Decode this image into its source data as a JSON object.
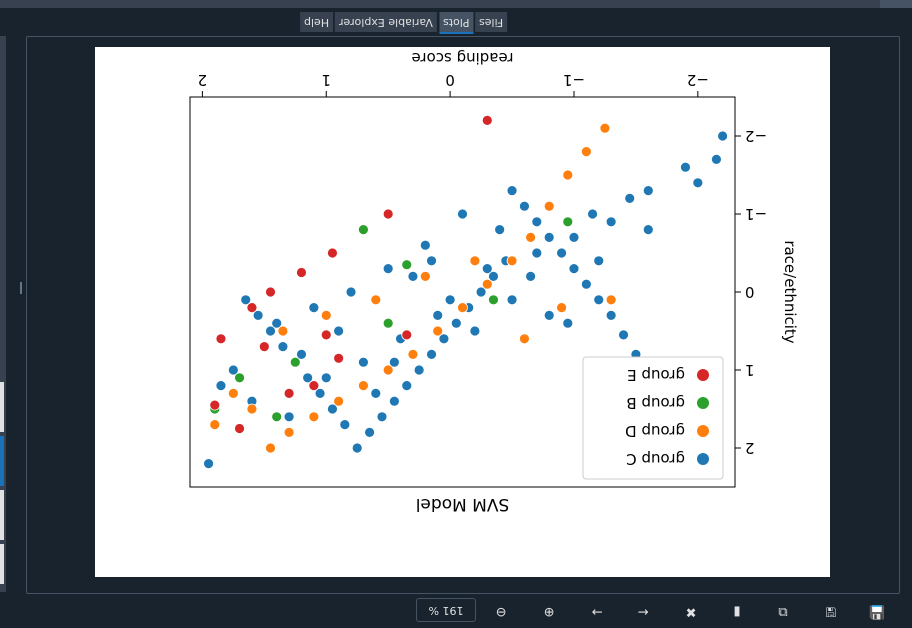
{
  "tabs": [
    {
      "label": "Help"
    },
    {
      "label": "Variable Explorer"
    },
    {
      "label": "Plots",
      "active": true
    },
    {
      "label": "Files"
    }
  ],
  "toolbar": {
    "zoom": "191 %",
    "icons": [
      "save-icon",
      "save-all-icon",
      "copy-icon",
      "clear-icon",
      "remove-icon",
      "next-icon",
      "previous-icon",
      "zoom-in-icon",
      "zoom-out-icon"
    ]
  },
  "chart_data": {
    "type": "scatter",
    "title": "SVM Model",
    "xlabel": "reading score",
    "ylabel": "race/ethnicity",
    "orientation": "rotated 180 degrees",
    "xlim": [
      -2.3,
      2.1
    ],
    "ylim": [
      -2.5,
      2.5
    ],
    "xticks": [
      "−2",
      "−1",
      "0",
      "1",
      "2"
    ],
    "yticks": [
      "−2",
      "−1",
      "0",
      "1",
      "2"
    ],
    "grid": false,
    "legend_position": "lower-right of plot (upper-left when rotated)",
    "colors": {
      "group C": "#1f77b4",
      "group D": "#ff7f0e",
      "group B": "#2ca02c",
      "group E": "#d62728"
    },
    "series": [
      {
        "name": "group C",
        "points": [
          [
            -2.1,
            2.1
          ],
          [
            -2.05,
            1.85
          ],
          [
            -1.95,
            1.6
          ],
          [
            -1.8,
            1.4
          ],
          [
            -1.7,
            1.2
          ],
          [
            -1.6,
            1.0
          ],
          [
            -1.5,
            0.8
          ],
          [
            -1.4,
            0.55
          ],
          [
            -1.3,
            0.3
          ],
          [
            -1.2,
            0.1
          ],
          [
            -1.1,
            -0.1
          ],
          [
            -1.0,
            -0.3
          ],
          [
            -0.9,
            -0.5
          ],
          [
            -0.8,
            -0.7
          ],
          [
            -0.7,
            -0.9
          ],
          [
            -0.6,
            -1.1
          ],
          [
            -0.5,
            -1.3
          ],
          [
            -0.45,
            -0.4
          ],
          [
            -0.35,
            -0.2
          ],
          [
            -0.25,
            0.0
          ],
          [
            -0.15,
            0.2
          ],
          [
            -0.05,
            0.4
          ],
          [
            0.05,
            0.6
          ],
          [
            0.15,
            0.8
          ],
          [
            0.25,
            1.0
          ],
          [
            0.35,
            1.2
          ],
          [
            0.45,
            1.4
          ],
          [
            0.55,
            1.6
          ],
          [
            0.65,
            1.8
          ],
          [
            0.75,
            2.0
          ],
          [
            0.85,
            1.7
          ],
          [
            0.95,
            1.5
          ],
          [
            1.05,
            1.3
          ],
          [
            1.15,
            1.1
          ],
          [
            1.25,
            0.9
          ],
          [
            1.35,
            0.7
          ],
          [
            1.45,
            0.5
          ],
          [
            1.55,
            0.3
          ],
          [
            1.65,
            0.1
          ],
          [
            1.75,
            1.0
          ],
          [
            1.85,
            1.2
          ],
          [
            1.95,
            2.2
          ],
          [
            -2.2,
            -2.0
          ],
          [
            -1.9,
            -1.6
          ],
          [
            -1.6,
            -1.3
          ],
          [
            -1.3,
            -0.9
          ],
          [
            -1.0,
            -0.7
          ],
          [
            -0.7,
            -0.5
          ],
          [
            -0.4,
            -0.8
          ],
          [
            -0.1,
            -1.0
          ],
          [
            0.2,
            -0.6
          ],
          [
            0.5,
            -0.3
          ],
          [
            0.8,
            0.0
          ],
          [
            1.1,
            0.2
          ],
          [
            1.4,
            0.4
          ],
          [
            0.1,
            0.3
          ],
          [
            -0.2,
            0.5
          ],
          [
            -0.5,
            0.1
          ],
          [
            0.4,
            0.6
          ],
          [
            0.7,
            0.9
          ],
          [
            1.0,
            1.1
          ],
          [
            1.3,
            1.6
          ],
          [
            0.6,
            1.3
          ],
          [
            -0.8,
            0.3
          ],
          [
            -1.2,
            -0.4
          ],
          [
            -1.6,
            -0.8
          ],
          [
            -2.0,
            -1.4
          ],
          [
            -2.15,
            -1.7
          ],
          [
            -1.45,
            -1.2
          ],
          [
            -1.15,
            -1.0
          ],
          [
            0.3,
            -0.2
          ],
          [
            0.0,
            0.1
          ],
          [
            -0.3,
            -0.3
          ],
          [
            0.9,
            0.5
          ],
          [
            1.2,
            0.8
          ],
          [
            1.6,
            1.4
          ],
          [
            0.45,
            0.9
          ],
          [
            -0.65,
            -0.2
          ],
          [
            -0.95,
            0.4
          ],
          [
            0.15,
            -0.4
          ]
        ]
      },
      {
        "name": "group D",
        "points": [
          [
            -1.25,
            -2.1
          ],
          [
            -1.1,
            -1.8
          ],
          [
            -0.95,
            -1.5
          ],
          [
            -0.8,
            -1.1
          ],
          [
            -0.65,
            -0.7
          ],
          [
            -0.5,
            -0.4
          ],
          [
            -0.3,
            -0.1
          ],
          [
            -0.1,
            0.2
          ],
          [
            0.1,
            0.5
          ],
          [
            0.3,
            0.8
          ],
          [
            0.5,
            1.0
          ],
          [
            0.7,
            1.2
          ],
          [
            0.9,
            1.4
          ],
          [
            1.1,
            1.6
          ],
          [
            1.3,
            1.8
          ],
          [
            1.45,
            2.0
          ],
          [
            1.6,
            1.5
          ],
          [
            1.75,
            1.3
          ],
          [
            1.9,
            1.7
          ],
          [
            -0.9,
            0.2
          ],
          [
            -0.6,
            0.6
          ],
          [
            -0.2,
            -0.4
          ],
          [
            0.2,
            -0.2
          ],
          [
            0.6,
            0.1
          ],
          [
            1.0,
            0.3
          ],
          [
            1.35,
            0.5
          ],
          [
            -1.3,
            0.1
          ]
        ]
      },
      {
        "name": "group B",
        "points": [
          [
            -0.95,
            -0.9
          ],
          [
            -0.35,
            0.1
          ],
          [
            0.5,
            0.4
          ],
          [
            1.25,
            0.9
          ],
          [
            1.7,
            1.1
          ],
          [
            1.4,
            1.6
          ],
          [
            1.9,
            1.5
          ],
          [
            0.7,
            -0.8
          ],
          [
            0.35,
            -0.35
          ]
        ]
      },
      {
        "name": "group E",
        "points": [
          [
            -0.3,
            -2.2
          ],
          [
            0.5,
            -1.0
          ],
          [
            0.95,
            -0.5
          ],
          [
            1.0,
            0.55
          ],
          [
            1.45,
            0.0
          ],
          [
            1.85,
            0.6
          ],
          [
            1.5,
            0.7
          ],
          [
            1.3,
            1.3
          ],
          [
            1.1,
            1.2
          ],
          [
            1.9,
            1.45
          ],
          [
            1.7,
            1.75
          ],
          [
            1.6,
            0.2
          ],
          [
            0.9,
            0.85
          ],
          [
            0.35,
            0.55
          ],
          [
            1.2,
            -0.25
          ]
        ]
      }
    ]
  }
}
